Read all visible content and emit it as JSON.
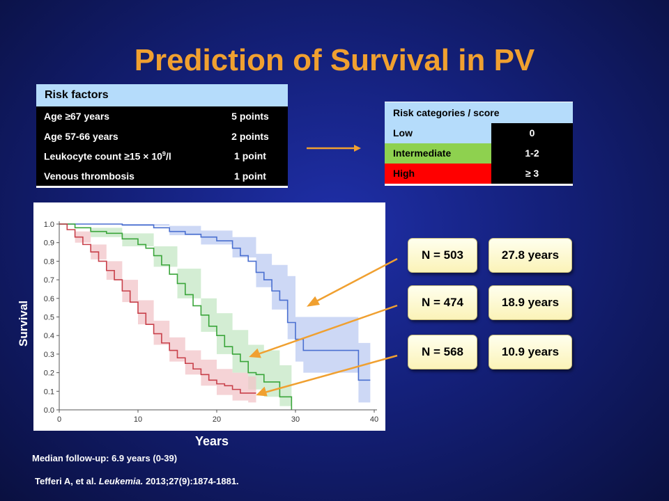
{
  "title": "Prediction of Survival in PV",
  "risk_factors": {
    "header": "Risk factors",
    "rows": [
      {
        "label": "Age ≥67 years",
        "points": "5 points"
      },
      {
        "label": "Age 57-66 years",
        "points": "2 points"
      },
      {
        "label_pre": "Leukocyte count ≥15 × 10",
        "label_sup": "9",
        "label_post": "/l",
        "points": "1 point"
      },
      {
        "label": "Venous thrombosis",
        "points": "1 point"
      }
    ]
  },
  "risk_categories": {
    "header": "Risk categories / score",
    "rows": [
      {
        "name": "Low",
        "score": "0",
        "color": "#b5dcfb"
      },
      {
        "name": "Intermediate",
        "score": "1-2",
        "color": "#8ed14f"
      },
      {
        "name": "High",
        "score": "≥ 3",
        "color": "#ff0000"
      }
    ]
  },
  "boxes": [
    {
      "n": "N = 503",
      "years": "27.8 years"
    },
    {
      "n": "N = 474",
      "years": "18.9 years"
    },
    {
      "n": "N = 568",
      "years": "10.9 years"
    }
  ],
  "axis": {
    "ylabel": "Survival",
    "xlabel": "Years"
  },
  "footnote": "Median follow-up: 6.9 years (0-39)",
  "citation": {
    "authors": "Tefferi A, et al. ",
    "journal": "Leukemia.",
    "rest": " 2013;27(9):1874-1881."
  },
  "colors": {
    "title": "#f0a030",
    "arrow": "#f0a030",
    "low": "#4a6fd0",
    "intermediate": "#3aa53a",
    "high": "#c8404a"
  },
  "chart_data": {
    "type": "line",
    "xlim": [
      0,
      40
    ],
    "ylim": [
      0,
      1
    ],
    "xticks": [
      0,
      10,
      20,
      30,
      40
    ],
    "yticks": [
      "0.0",
      "0.1",
      "0.2",
      "0.3",
      "0.4",
      "0.5",
      "0.6",
      "0.7",
      "0.8",
      "0.9",
      "1.0"
    ],
    "step": true,
    "confidence_bands": true,
    "series": [
      {
        "color": "#4a6fd0",
        "band_color": "#bccbf2",
        "points": [
          [
            0,
            1.0
          ],
          [
            5,
            1.0
          ],
          [
            8,
            0.995
          ],
          [
            12,
            0.98
          ],
          [
            14,
            0.96
          ],
          [
            16,
            0.945
          ],
          [
            18,
            0.93
          ],
          [
            20,
            0.91
          ],
          [
            22,
            0.87
          ],
          [
            23,
            0.83
          ],
          [
            24,
            0.8
          ],
          [
            25,
            0.74
          ],
          [
            26,
            0.7
          ],
          [
            27,
            0.64
          ],
          [
            28,
            0.59
          ],
          [
            29,
            0.47
          ],
          [
            30,
            0.38
          ],
          [
            31,
            0.38
          ],
          [
            31,
            0.32
          ],
          [
            38,
            0.32
          ],
          [
            38,
            0.16
          ],
          [
            39.5,
            0.16
          ]
        ],
        "upper": [
          [
            0,
            1.0
          ],
          [
            8,
            1.0
          ],
          [
            14,
            0.99
          ],
          [
            18,
            0.965
          ],
          [
            22,
            0.93
          ],
          [
            25,
            0.84
          ],
          [
            27,
            0.78
          ],
          [
            29,
            0.72
          ],
          [
            30,
            0.5
          ],
          [
            35,
            0.5
          ],
          [
            38,
            0.5
          ],
          [
            38,
            0.36
          ],
          [
            39.5,
            0.36
          ]
        ],
        "lower": [
          [
            0,
            1.0
          ],
          [
            8,
            0.99
          ],
          [
            14,
            0.94
          ],
          [
            18,
            0.89
          ],
          [
            22,
            0.82
          ],
          [
            25,
            0.66
          ],
          [
            27,
            0.54
          ],
          [
            29,
            0.38
          ],
          [
            30,
            0.26
          ],
          [
            31,
            0.2
          ],
          [
            38,
            0.2
          ],
          [
            38,
            0.04
          ],
          [
            39.5,
            0.04
          ]
        ]
      },
      {
        "color": "#3aa53a",
        "band_color": "#c4e7c4",
        "points": [
          [
            0,
            1.0
          ],
          [
            2,
            0.98
          ],
          [
            4,
            0.96
          ],
          [
            6,
            0.95
          ],
          [
            8,
            0.92
          ],
          [
            10,
            0.89
          ],
          [
            11,
            0.87
          ],
          [
            12,
            0.83
          ],
          [
            13,
            0.78
          ],
          [
            14,
            0.73
          ],
          [
            15,
            0.68
          ],
          [
            16,
            0.62
          ],
          [
            17,
            0.56
          ],
          [
            18,
            0.51
          ],
          [
            19,
            0.45
          ],
          [
            20,
            0.4
          ],
          [
            21,
            0.34
          ],
          [
            22,
            0.3
          ],
          [
            23,
            0.26
          ],
          [
            24,
            0.2
          ],
          [
            25,
            0.19
          ],
          [
            26,
            0.15
          ],
          [
            27,
            0.15
          ],
          [
            28,
            0.07
          ],
          [
            29,
            0.07
          ],
          [
            29.5,
            0.0
          ]
        ],
        "upper": [
          [
            0,
            1.0
          ],
          [
            4,
            0.98
          ],
          [
            8,
            0.95
          ],
          [
            12,
            0.88
          ],
          [
            15,
            0.76
          ],
          [
            18,
            0.6
          ],
          [
            20,
            0.52
          ],
          [
            22,
            0.43
          ],
          [
            24,
            0.35
          ],
          [
            26,
            0.32
          ],
          [
            28,
            0.24
          ],
          [
            29.5,
            0.2
          ]
        ],
        "lower": [
          [
            0,
            1.0
          ],
          [
            4,
            0.93
          ],
          [
            8,
            0.88
          ],
          [
            12,
            0.77
          ],
          [
            15,
            0.6
          ],
          [
            18,
            0.42
          ],
          [
            20,
            0.3
          ],
          [
            22,
            0.2
          ],
          [
            24,
            0.11
          ],
          [
            26,
            0.07
          ],
          [
            28,
            0.02
          ],
          [
            29.5,
            0.0
          ]
        ]
      },
      {
        "color": "#c8404a",
        "band_color": "#f1c4c8",
        "points": [
          [
            0,
            1.0
          ],
          [
            1,
            0.97
          ],
          [
            2,
            0.93
          ],
          [
            3,
            0.89
          ],
          [
            4,
            0.85
          ],
          [
            5,
            0.8
          ],
          [
            6,
            0.75
          ],
          [
            7,
            0.7
          ],
          [
            8,
            0.64
          ],
          [
            9,
            0.58
          ],
          [
            10,
            0.52
          ],
          [
            11,
            0.46
          ],
          [
            12,
            0.41
          ],
          [
            13,
            0.36
          ],
          [
            14,
            0.32
          ],
          [
            15,
            0.28
          ],
          [
            16,
            0.25
          ],
          [
            17,
            0.22
          ],
          [
            18,
            0.19
          ],
          [
            19,
            0.16
          ],
          [
            20,
            0.14
          ],
          [
            21,
            0.13
          ],
          [
            22,
            0.11
          ],
          [
            23,
            0.09
          ],
          [
            25,
            0.09
          ]
        ],
        "upper": [
          [
            0,
            1.0
          ],
          [
            2,
            0.96
          ],
          [
            4,
            0.89
          ],
          [
            6,
            0.8
          ],
          [
            8,
            0.7
          ],
          [
            10,
            0.59
          ],
          [
            12,
            0.48
          ],
          [
            14,
            0.39
          ],
          [
            16,
            0.32
          ],
          [
            18,
            0.27
          ],
          [
            20,
            0.22
          ],
          [
            22,
            0.2
          ],
          [
            24,
            0.18
          ],
          [
            25,
            0.18
          ]
        ],
        "lower": [
          [
            0,
            1.0
          ],
          [
            2,
            0.9
          ],
          [
            4,
            0.81
          ],
          [
            6,
            0.7
          ],
          [
            8,
            0.58
          ],
          [
            10,
            0.46
          ],
          [
            12,
            0.35
          ],
          [
            14,
            0.26
          ],
          [
            16,
            0.19
          ],
          [
            18,
            0.13
          ],
          [
            20,
            0.08
          ],
          [
            22,
            0.05
          ],
          [
            24,
            0.04
          ],
          [
            25,
            0.04
          ]
        ]
      }
    ]
  }
}
